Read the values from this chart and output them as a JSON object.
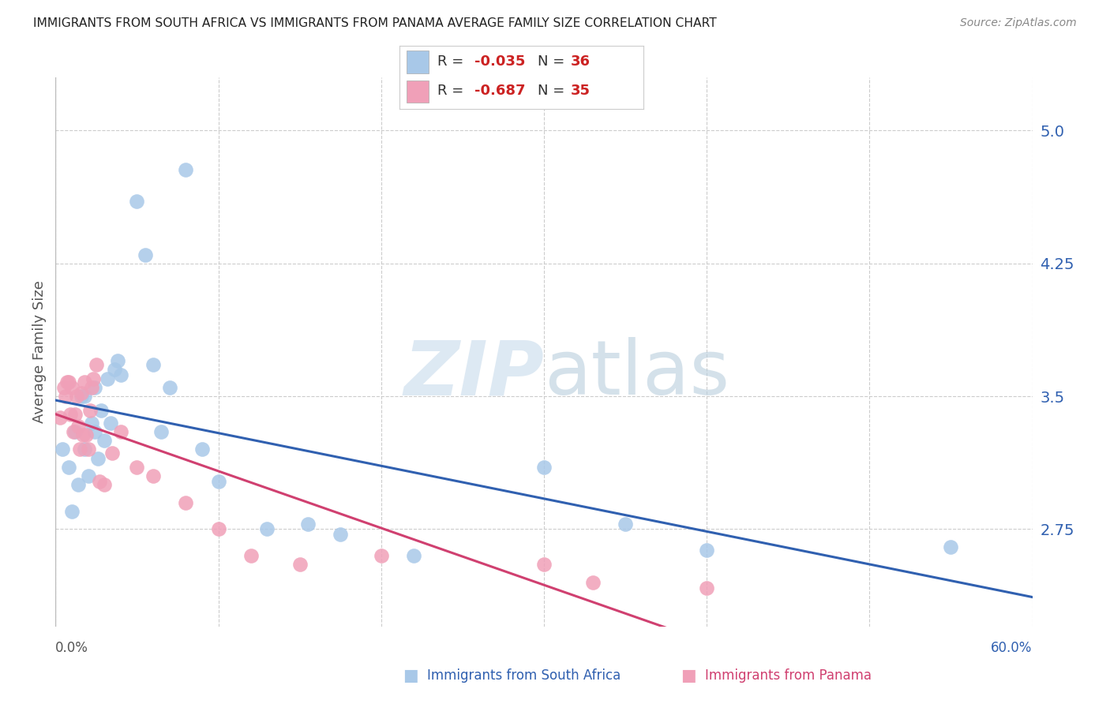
{
  "title": "IMMIGRANTS FROM SOUTH AFRICA VS IMMIGRANTS FROM PANAMA AVERAGE FAMILY SIZE CORRELATION CHART",
  "source": "Source: ZipAtlas.com",
  "ylabel": "Average Family Size",
  "yticks": [
    2.75,
    3.5,
    4.25,
    5.0
  ],
  "xlim": [
    0.0,
    0.6
  ],
  "ylim": [
    2.2,
    5.3
  ],
  "blue_label": "Immigrants from South Africa",
  "pink_label": "Immigrants from Panama",
  "blue_R": -0.035,
  "blue_N": 36,
  "pink_R": -0.687,
  "pink_N": 35,
  "blue_color": "#a8c8e8",
  "blue_line_color": "#3060b0",
  "pink_color": "#f0a0b8",
  "pink_line_color": "#d04070",
  "red_text_color": "#cc2222",
  "right_axis_color": "#3060b0",
  "bg_color": "#ffffff",
  "grid_color": "#cccccc",
  "title_color": "#222222",
  "source_color": "#888888",
  "blue_x": [
    0.004,
    0.008,
    0.01,
    0.012,
    0.014,
    0.016,
    0.018,
    0.018,
    0.02,
    0.022,
    0.024,
    0.024,
    0.026,
    0.028,
    0.03,
    0.032,
    0.034,
    0.036,
    0.038,
    0.04,
    0.05,
    0.055,
    0.06,
    0.065,
    0.07,
    0.08,
    0.09,
    0.1,
    0.13,
    0.155,
    0.175,
    0.22,
    0.3,
    0.35,
    0.4,
    0.55
  ],
  "blue_y": [
    3.2,
    3.1,
    2.85,
    3.3,
    3.0,
    3.5,
    3.2,
    3.5,
    3.05,
    3.35,
    3.55,
    3.3,
    3.15,
    3.42,
    3.25,
    3.6,
    3.35,
    3.65,
    3.7,
    3.62,
    4.6,
    4.3,
    3.68,
    3.3,
    3.55,
    4.78,
    3.2,
    3.02,
    2.75,
    2.78,
    2.72,
    2.6,
    3.1,
    2.78,
    2.63,
    2.65
  ],
  "pink_x": [
    0.003,
    0.005,
    0.006,
    0.007,
    0.008,
    0.009,
    0.01,
    0.011,
    0.012,
    0.013,
    0.014,
    0.015,
    0.016,
    0.017,
    0.018,
    0.019,
    0.02,
    0.021,
    0.022,
    0.023,
    0.025,
    0.027,
    0.03,
    0.035,
    0.04,
    0.05,
    0.06,
    0.08,
    0.1,
    0.12,
    0.15,
    0.2,
    0.3,
    0.33,
    0.4
  ],
  "pink_y": [
    3.38,
    3.55,
    3.5,
    3.58,
    3.58,
    3.4,
    3.55,
    3.3,
    3.4,
    3.5,
    3.33,
    3.2,
    3.52,
    3.28,
    3.58,
    3.28,
    3.2,
    3.42,
    3.55,
    3.6,
    3.68,
    3.02,
    3.0,
    3.18,
    3.3,
    3.1,
    3.05,
    2.9,
    2.75,
    2.6,
    2.55,
    2.6,
    2.55,
    2.45,
    2.42
  ]
}
